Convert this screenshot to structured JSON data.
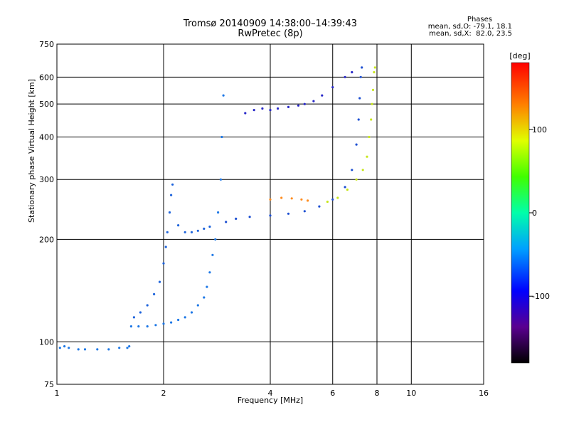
{
  "header": {
    "title_line1": "Tromsø 20140909 14:38:00–14:39:43",
    "title_line2": "RwPretec (8p)",
    "stats_title": "Phases",
    "stats_o": "mean, sd,O: -79.1, 18.1",
    "stats_x": "mean, sd,X:  82.0, 23.5"
  },
  "chart_data": {
    "type": "scatter",
    "title": "Tromsø 20140909 14:38:00–14:39:43",
    "subtitle": "RwPretec (8p)",
    "xlabel": "Frequency [MHz]",
    "ylabel": "Stationary phase Virtual Height [km]",
    "xscale": "log",
    "yscale": "log",
    "xlim": [
      1,
      16
    ],
    "ylim": [
      75,
      750
    ],
    "xticks": [
      1,
      2,
      4,
      6,
      8,
      10,
      16
    ],
    "yticks": [
      75,
      100,
      200,
      300,
      400,
      500,
      600,
      750
    ],
    "grid": true,
    "colorbar": {
      "label": "[deg]",
      "min": -180,
      "max": 180,
      "ticks": [
        100,
        0,
        -100
      ],
      "colormap": "rainbow"
    },
    "series": [
      {
        "points": [
          [
            1.02,
            96
          ],
          [
            1.05,
            97
          ],
          [
            1.08,
            96
          ],
          [
            1.15,
            95
          ],
          [
            1.2,
            95
          ],
          [
            1.3,
            95
          ],
          [
            1.4,
            95
          ],
          [
            1.5,
            96
          ],
          [
            1.58,
            96
          ],
          [
            1.6,
            97
          ],
          [
            1.62,
            111
          ],
          [
            1.7,
            111
          ],
          [
            1.8,
            111
          ],
          [
            1.9,
            112
          ],
          [
            2.0,
            113
          ],
          [
            2.1,
            114
          ],
          [
            2.2,
            116
          ],
          [
            2.3,
            118
          ],
          [
            2.4,
            122
          ],
          [
            2.5,
            128
          ],
          [
            2.6,
            135
          ],
          [
            2.65,
            145
          ],
          [
            2.7,
            160
          ],
          [
            2.75,
            180
          ],
          [
            2.8,
            200
          ],
          [
            2.85,
            240
          ],
          [
            2.9,
            300
          ],
          [
            2.92,
            400
          ],
          [
            2.95,
            530
          ]
        ]
      },
      {
        "points": [
          [
            1.65,
            118
          ],
          [
            1.72,
            122
          ],
          [
            1.8,
            128
          ],
          [
            1.88,
            138
          ],
          [
            1.95,
            150
          ],
          [
            2.0,
            170
          ],
          [
            2.03,
            190
          ],
          [
            2.05,
            210
          ],
          [
            2.08,
            240
          ],
          [
            2.1,
            270
          ],
          [
            2.12,
            290
          ],
          [
            2.2,
            220
          ],
          [
            2.3,
            210
          ],
          [
            2.4,
            210
          ],
          [
            2.5,
            212
          ],
          [
            2.6,
            215
          ],
          [
            2.7,
            218
          ]
        ]
      },
      {
        "points": [
          [
            3.0,
            225
          ],
          [
            3.2,
            230
          ],
          [
            3.5,
            233
          ],
          [
            4.0,
            235
          ],
          [
            4.5,
            238
          ],
          [
            5.0,
            242
          ],
          [
            5.5,
            250
          ],
          [
            6.0,
            262
          ],
          [
            6.5,
            285
          ],
          [
            6.8,
            320
          ],
          [
            7.0,
            380
          ],
          [
            7.1,
            450
          ],
          [
            7.15,
            520
          ],
          [
            7.2,
            600
          ],
          [
            7.25,
            640
          ]
        ]
      },
      {
        "points": [
          [
            3.4,
            470
          ],
          [
            3.6,
            480
          ],
          [
            3.8,
            485
          ],
          [
            4.0,
            480
          ],
          [
            4.2,
            485
          ],
          [
            4.5,
            490
          ],
          [
            4.8,
            495
          ],
          [
            5.0,
            500
          ],
          [
            5.3,
            510
          ],
          [
            5.6,
            530
          ],
          [
            6.0,
            560
          ],
          [
            6.5,
            600
          ],
          [
            6.8,
            620
          ]
        ]
      },
      {
        "points": [
          [
            5.8,
            258
          ],
          [
            6.2,
            265
          ],
          [
            6.6,
            280
          ],
          [
            7.0,
            300
          ],
          [
            7.3,
            320
          ],
          [
            7.5,
            350
          ],
          [
            7.6,
            400
          ],
          [
            7.7,
            450
          ],
          [
            7.75,
            500
          ],
          [
            7.8,
            550
          ],
          [
            7.85,
            620
          ],
          [
            7.9,
            640
          ]
        ]
      },
      {
        "points": [
          [
            4.0,
            262
          ],
          [
            4.3,
            265
          ],
          [
            4.6,
            264
          ],
          [
            4.9,
            262
          ],
          [
            5.1,
            260
          ]
        ]
      }
    ]
  }
}
